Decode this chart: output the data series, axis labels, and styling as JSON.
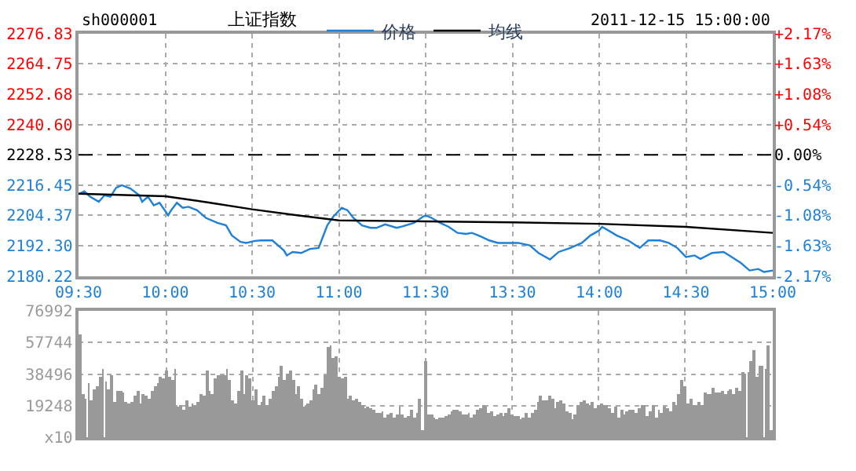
{
  "chart_data": [
    {
      "type": "line",
      "title": "上证指数",
      "annotations": [
        "sh000001",
        "2011-12-15 15:00:00"
      ],
      "legend": "top",
      "grid": true,
      "categories": [
        "09:30",
        null,
        null,
        null,
        null,
        null,
        null,
        null,
        null,
        null,
        null,
        null,
        null,
        null,
        null,
        null,
        null,
        null,
        null,
        null,
        null,
        null,
        null,
        null,
        null,
        null,
        null,
        null,
        null,
        null,
        "10:00",
        null,
        null,
        null,
        null,
        null,
        null,
        null,
        null,
        null,
        null,
        null,
        null,
        null,
        null,
        null,
        null,
        null,
        null,
        null,
        null,
        null,
        null,
        null,
        null,
        null,
        null,
        null,
        null,
        null,
        "10:30",
        null,
        null,
        null,
        null,
        null,
        null,
        null,
        null,
        null,
        null,
        null,
        null,
        null,
        null,
        null,
        null,
        null,
        null,
        null,
        null,
        null,
        null,
        null,
        null,
        null,
        null,
        null,
        null,
        null,
        "11:00",
        null,
        null,
        null,
        null,
        null,
        null,
        null,
        null,
        null,
        null,
        null,
        null,
        null,
        null,
        null,
        null,
        null,
        null,
        null,
        null,
        null,
        null,
        null,
        null,
        null,
        null,
        null,
        null,
        null,
        "11:30",
        null,
        null,
        null,
        null,
        null,
        null,
        null,
        null,
        null,
        null,
        null,
        null,
        null,
        null,
        null,
        null,
        null,
        null,
        null,
        null,
        null,
        null,
        null,
        null,
        null,
        null,
        null,
        null,
        null,
        "13:30",
        null,
        null,
        null,
        null,
        null,
        null,
        null,
        null,
        null,
        null,
        null,
        null,
        null,
        null,
        null,
        null,
        null,
        null,
        null,
        null,
        null,
        null,
        null,
        null,
        null,
        null,
        null,
        null,
        null,
        "14:00",
        null,
        null,
        null,
        null,
        null,
        null,
        null,
        null,
        null,
        null,
        null,
        null,
        null,
        null,
        null,
        null,
        null,
        null,
        null,
        null,
        null,
        null,
        null,
        null,
        null,
        null,
        null,
        null,
        null,
        "14:30",
        null,
        null,
        null,
        null,
        null,
        null,
        null,
        null,
        null,
        null,
        null,
        null,
        null,
        null,
        null,
        null,
        null,
        null,
        null,
        null,
        null,
        null,
        null,
        null,
        null,
        null,
        null,
        null,
        null,
        "15:00"
      ],
      "ylim": [
        2180.22,
        2276.83
      ],
      "yticks": [
        2180.22,
        {
          "value": 2192.3,
          "label": "2192.30"
        },
        2204.37,
        2216.45,
        2228.53,
        {
          "value": 2240.6,
          "label": "2240.60"
        },
        2252.68,
        2264.75,
        2276.83
      ],
      "y2lim": [
        -2.17,
        2.17
      ],
      "y2ticks": [
        {
          "value": -2.17,
          "label": "-2.17%"
        },
        {
          "value": -1.63,
          "label": "-1.63%"
        },
        {
          "value": -1.08,
          "label": "-1.08%"
        },
        {
          "value": -0.54,
          "label": "-0.54%"
        },
        {
          "value": 0,
          "label": "0.00%"
        },
        {
          "value": 0.54,
          "label": "+0.54%"
        },
        {
          "value": 1.08,
          "label": "+1.08%"
        },
        {
          "value": 1.63,
          "label": "+1.63%"
        },
        {
          "value": 2.17,
          "label": "+2.17%"
        }
      ],
      "ref_lines": [
        {
          "axis": "y",
          "value": 2228.53,
          "color": "#000000",
          "line_style": "dashed"
        }
      ],
      "series": [
        {
          "name": "价格",
          "color": "#1e80d8",
          "values": [
            2212.8,
            null,
            2214.0,
            null,
            2211.8,
            null,
            null,
            2209.8,
            null,
            2212.4,
            null,
            2211.8,
            null,
            2215.4,
            null,
            2216.4,
            null,
            null,
            2215.0,
            null,
            null,
            2212.4,
            2209.8,
            null,
            2211.8,
            null,
            2208.4,
            null,
            2209.4,
            null,
            null,
            2204.4,
            2206.4,
            null,
            2209.4,
            null,
            2207.4,
            null,
            2207.8,
            null,
            null,
            2206.4,
            null,
            null,
            2203.4,
            null,
            null,
            null,
            2201.4,
            null,
            null,
            2200.4,
            null,
            2196.4,
            null,
            null,
            2193.8,
            null,
            2193.4,
            null,
            null,
            2194.2,
            null,
            2194.4,
            null,
            null,
            null,
            2194.4,
            null,
            2192.4,
            null,
            2190.4,
            2188.4,
            null,
            2189.8,
            null,
            null,
            2189.4,
            null,
            null,
            2191.0,
            null,
            null,
            2191.4,
            2194.4,
            null,
            2200.4,
            null,
            2203.8,
            null,
            null,
            2207.4,
            null,
            2206.4,
            null,
            2203.4,
            null,
            null,
            2200.4,
            null,
            null,
            2199.4,
            null,
            2199.4,
            null,
            null,
            2200.8,
            null,
            null,
            null,
            2199.4,
            null,
            2200.0,
            null,
            null,
            null,
            2201.4,
            null,
            null,
            2203.8,
            2204.4,
            null,
            2203.4,
            null,
            null,
            2201.4,
            null,
            null,
            2199.8,
            null,
            null,
            2197.4,
            null,
            null,
            2197.0,
            null,
            2197.4,
            null,
            null,
            2196.0,
            null,
            null,
            2194.4,
            null,
            null,
            2193.4,
            null,
            null,
            2193.4,
            null,
            null,
            null,
            2193.4,
            null,
            null,
            null,
            2192.4,
            null,
            null,
            2189.4,
            null,
            null,
            null,
            2186.8,
            null,
            null,
            2189.8,
            null,
            null,
            null,
            2191.4,
            null,
            null,
            null,
            2193.4,
            null,
            null,
            2196.4,
            null,
            null,
            2198.4,
            2199.8,
            null,
            null,
            2197.8,
            null,
            2196.4,
            null,
            null,
            null,
            2194.4,
            null,
            null,
            null,
            2191.4,
            null,
            null,
            2194.4,
            null,
            null,
            null,
            2194.4,
            null,
            null,
            2193.4,
            null,
            null,
            2191.4,
            null,
            null,
            2187.8,
            null,
            null,
            2188.4,
            null,
            2187.0,
            null,
            null,
            null,
            2189.4,
            null,
            null,
            null,
            2189.8,
            null,
            2188.4,
            null,
            null,
            null,
            2185.4,
            null,
            null,
            2182.4,
            null,
            null,
            2183.0,
            null,
            2181.8,
            null,
            null,
            2182.4
          ]
        },
        {
          "name": "均线",
          "color": "#000000",
          "values": [
            2213.0,
            null,
            null,
            null,
            null,
            null,
            null,
            null,
            null,
            null,
            null,
            null,
            null,
            null,
            null,
            null,
            null,
            null,
            null,
            null,
            null,
            null,
            null,
            null,
            null,
            null,
            null,
            null,
            null,
            null,
            2212.0,
            null,
            null,
            null,
            null,
            null,
            null,
            null,
            null,
            null,
            null,
            null,
            null,
            null,
            null,
            2209.5,
            null,
            null,
            null,
            null,
            null,
            null,
            null,
            null,
            null,
            null,
            null,
            null,
            null,
            null,
            2206.8,
            null,
            null,
            null,
            null,
            null,
            null,
            null,
            null,
            null,
            null,
            null,
            null,
            null,
            null,
            2204.5,
            null,
            null,
            null,
            null,
            null,
            null,
            null,
            null,
            null,
            null,
            null,
            null,
            null,
            null,
            2202.4,
            null,
            null,
            null,
            null,
            null,
            null,
            null,
            null,
            null,
            null,
            null,
            null,
            null,
            null,
            null,
            null,
            null,
            null,
            null,
            null,
            null,
            null,
            null,
            null,
            null,
            null,
            null,
            null,
            null,
            2202.0,
            null,
            null,
            null,
            null,
            null,
            null,
            null,
            null,
            null,
            null,
            null,
            null,
            null,
            null,
            null,
            null,
            null,
            null,
            null,
            null,
            null,
            null,
            null,
            null,
            null,
            null,
            null,
            null,
            null,
            2201.6,
            null,
            null,
            null,
            null,
            null,
            null,
            null,
            null,
            null,
            null,
            null,
            null,
            null,
            null,
            null,
            null,
            null,
            null,
            null,
            null,
            null,
            null,
            null,
            null,
            null,
            null,
            null,
            null,
            null,
            2201.0,
            null,
            null,
            null,
            null,
            null,
            null,
            null,
            null,
            null,
            null,
            null,
            null,
            null,
            null,
            null,
            null,
            null,
            null,
            null,
            null,
            null,
            null,
            null,
            null,
            null,
            null,
            null,
            null,
            null,
            2199.8,
            null,
            null,
            null,
            null,
            null,
            null,
            null,
            null,
            null,
            null,
            null,
            null,
            null,
            null,
            null,
            null,
            null,
            null,
            null,
            null,
            null,
            null,
            null,
            null,
            null,
            null,
            null,
            null,
            null,
            2197.4
          ]
        }
      ]
    },
    {
      "type": "bar",
      "color": "#999999",
      "grid": true,
      "tick_labels": "y",
      "categories": [
        null,
        null,
        null,
        null,
        null,
        null,
        null,
        null,
        null,
        null,
        null,
        null,
        null,
        null,
        null,
        null,
        null,
        null,
        null,
        null,
        null,
        null,
        null,
        null,
        null,
        null,
        null,
        null,
        null,
        null,
        null,
        null,
        null,
        null,
        null,
        null,
        null,
        null,
        null,
        null,
        null,
        null,
        null,
        null,
        null,
        null,
        null,
        null,
        null,
        null,
        null,
        null,
        null,
        null,
        null,
        null,
        null,
        null,
        null,
        null,
        null,
        null,
        null,
        null,
        null,
        null,
        null,
        null,
        null,
        null,
        null,
        null,
        null,
        null,
        null,
        null,
        null,
        null,
        null,
        null,
        null,
        null,
        null,
        null,
        null,
        null,
        null,
        null,
        null,
        null,
        null,
        null,
        null,
        null,
        null,
        null,
        null,
        null,
        null,
        null,
        null,
        null,
        null,
        null,
        null,
        null,
        null,
        null,
        null,
        null,
        null,
        null,
        null,
        null,
        null,
        null,
        null,
        null,
        null,
        null,
        null,
        null,
        null,
        null,
        null,
        null,
        null,
        null,
        null,
        null,
        null,
        null,
        null,
        null,
        null,
        null,
        null,
        null,
        null,
        null,
        null,
        null,
        null,
        null,
        null,
        null,
        null,
        null,
        null,
        null,
        null,
        null,
        null,
        null,
        null,
        null,
        null,
        null,
        null,
        null,
        null,
        null,
        null,
        null,
        null,
        null,
        null,
        null,
        null,
        null,
        null,
        null,
        null,
        null,
        null,
        null,
        null,
        null,
        null,
        null,
        null,
        null,
        null,
        null,
        null,
        null,
        null,
        null,
        null,
        null,
        null,
        null,
        null,
        null,
        null,
        null,
        null,
        null,
        null,
        null,
        null,
        null,
        null,
        null,
        null,
        null,
        null,
        null,
        null,
        null,
        null,
        null,
        null,
        null,
        null,
        null,
        null,
        null,
        null,
        null,
        null,
        null,
        null,
        null,
        null,
        null,
        null,
        null,
        null,
        null,
        null,
        null,
        null,
        null,
        null,
        null,
        null,
        null,
        null,
        null,
        null
      ],
      "ylim": [
        0,
        76992
      ],
      "yticks": [
        {
          "value": 0,
          "label": "x10"
        },
        19248,
        38496,
        57744,
        76992
      ],
      "values": [
        63000,
        26000,
        24000,
        33000,
        23000,
        29000,
        31000,
        37000,
        42000,
        34000,
        29000,
        38000,
        22000,
        28000,
        28000,
        27000,
        22000,
        21000,
        22000,
        25000,
        28000,
        21000,
        26000,
        25000,
        24000,
        28000,
        31000,
        33000,
        37000,
        36000,
        41000,
        37000,
        35000,
        42000,
        19000,
        20000,
        17000,
        23000,
        19000,
        21000,
        20000,
        22000,
        26000,
        25000,
        41000,
        28000,
        26000,
        36000,
        38000,
        38000,
        38000,
        42000,
        35000,
        23000,
        21000,
        28000,
        41000,
        26000,
        38000,
        36000,
        23000,
        29000,
        20000,
        22000,
        25000,
        20000,
        24000,
        28000,
        31000,
        37000,
        44000,
        35000,
        39000,
        41000,
        35000,
        26000,
        31000,
        24000,
        19000,
        21000,
        23000,
        29000,
        32000,
        26000,
        30000,
        38000,
        55000,
        56000,
        48000,
        49000,
        37000,
        36000,
        37000,
        24000,
        25000,
        23000,
        24000,
        22000,
        20000,
        18000,
        19000,
        18000,
        17000,
        15000,
        15000,
        16000,
        12000,
        14000,
        15000,
        12000,
        14000,
        19000,
        14000,
        12000,
        13000,
        17000,
        12000,
        15000,
        24000,
        4000,
        46000,
        14000,
        14000,
        12000,
        11000,
        12000,
        12000,
        13000,
        14000,
        16000,
        17000,
        17000,
        16000,
        14000,
        14000,
        15000,
        12000,
        14000,
        17000,
        18000,
        20000,
        19000,
        15000,
        16000,
        13000,
        14000,
        15000,
        13000,
        15000,
        18000,
        14000,
        13000,
        13000,
        11000,
        12000,
        15000,
        12000,
        15000,
        17000,
        22000,
        25000,
        23000,
        23000,
        25000,
        24000,
        18000,
        22000,
        23000,
        21000,
        16000,
        15000,
        11000,
        14000,
        20000,
        22000,
        23000,
        21000,
        20000,
        22000,
        18000,
        20000,
        21000,
        20000,
        20000,
        18000,
        15000,
        19000,
        12000,
        17000,
        14000,
        16000,
        17000,
        17000,
        15000,
        18000,
        20000,
        20000,
        13000,
        16000,
        20000,
        12000,
        17000,
        15000,
        19000,
        18000,
        16000,
        22000,
        20000,
        26000,
        35000,
        31000,
        21000,
        24000,
        20000,
        20000,
        22000,
        20000,
        27000,
        26000,
        26000,
        30000,
        27000,
        27000,
        28000,
        26000,
        28000,
        29000,
        26000,
        30000,
        28000,
        40000,
        39000,
        40000,
        46000,
        53000,
        37000,
        44000,
        44000,
        42000,
        56000,
        4000
      ]
    }
  ]
}
